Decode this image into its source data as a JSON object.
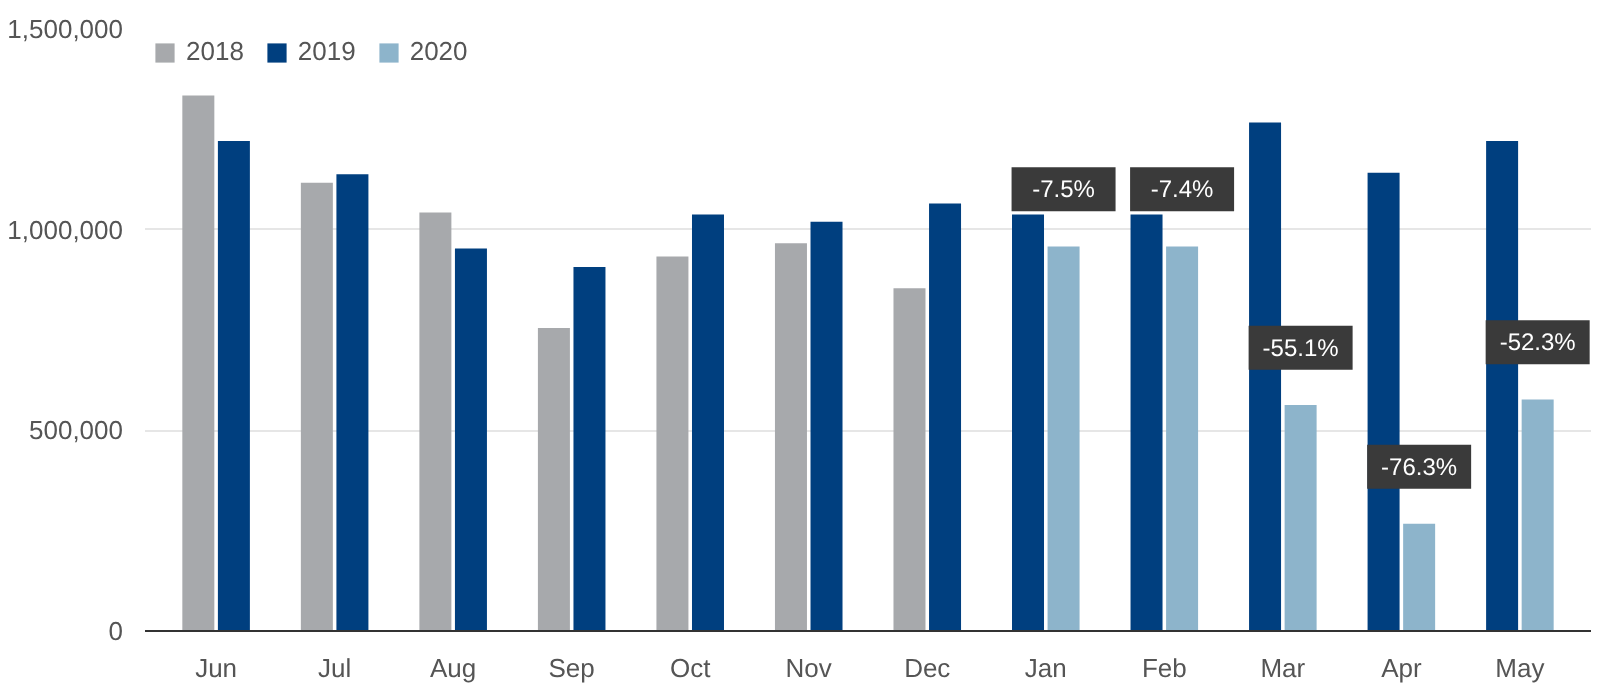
{
  "chart_data": {
    "type": "bar",
    "categories": [
      "Jun",
      "Jul",
      "Aug",
      "Sep",
      "Oct",
      "Nov",
      "Dec",
      "Jan",
      "Feb",
      "Mar",
      "Apr",
      "May"
    ],
    "series": [
      {
        "name": "2018",
        "color": "#a7a9ac",
        "values": [
          1334000,
          1117000,
          1043000,
          755000,
          933000,
          966000,
          854000,
          null,
          null,
          null,
          null,
          null
        ]
      },
      {
        "name": "2019",
        "color": "#003f7f",
        "values": [
          1221000,
          1138000,
          953000,
          907000,
          1038000,
          1020000,
          1065000,
          1038000,
          1038000,
          1267000,
          1142000,
          1221000
        ]
      },
      {
        "name": "2020",
        "color": "#8db4cb",
        "values": [
          null,
          null,
          null,
          null,
          null,
          null,
          null,
          958000,
          958000,
          563000,
          267000,
          577000
        ]
      }
    ],
    "annotations": [
      {
        "text": "-7.5%",
        "x": "Jan",
        "y": 958000
      },
      {
        "text": "-7.4%",
        "x": "Feb",
        "y": 958000
      },
      {
        "text": "-55.1%",
        "x": "Mar",
        "y": 563000
      },
      {
        "text": "-76.3%",
        "x": "Apr",
        "y": 267000
      },
      {
        "text": "-52.3%",
        "x": "May",
        "y": 577000
      }
    ],
    "ylim": [
      0,
      1500000
    ],
    "yticks": [
      {
        "value": 0,
        "label": "0"
      },
      {
        "value": 500000,
        "label": "500,000"
      },
      {
        "value": 1000000,
        "label": "1,000,000"
      },
      {
        "value": 1500000,
        "label": "1,500,000"
      }
    ],
    "grid": "y",
    "legend": "top left"
  }
}
